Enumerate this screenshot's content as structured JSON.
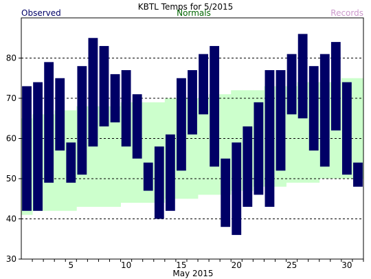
{
  "chart_data": {
    "type": "bar",
    "title": "KBTL Temps for  5/2015",
    "legend": {
      "observed": "Observed",
      "normals": "Normals",
      "records": "Records"
    },
    "xlabel": "May 2015",
    "ylabel": "",
    "xlim": [
      0.5,
      31.5
    ],
    "ylim": [
      30,
      90
    ],
    "x_tick_labels": [
      "5",
      "10",
      "15",
      "20",
      "25",
      "30"
    ],
    "x_tick_values": [
      5,
      10,
      15,
      20,
      25,
      30
    ],
    "y_tick_labels": [
      "30",
      "40",
      "50",
      "60",
      "70",
      "80"
    ],
    "y_tick_values": [
      30,
      40,
      50,
      60,
      70,
      80
    ],
    "grid_lines_y": [
      40,
      50,
      60,
      70,
      80
    ],
    "days": [
      1,
      2,
      3,
      4,
      5,
      6,
      7,
      8,
      9,
      10,
      11,
      12,
      13,
      14,
      15,
      16,
      17,
      18,
      19,
      20,
      21,
      22,
      23,
      24,
      25,
      26,
      27,
      28,
      29,
      30,
      31
    ],
    "series": [
      {
        "name": "Observed",
        "color": "#000066",
        "high": [
          73,
          74,
          79,
          75,
          59,
          78,
          85,
          83,
          76,
          77,
          71,
          54,
          58,
          61,
          75,
          77,
          81,
          83,
          55,
          59,
          63,
          69,
          77,
          77,
          81,
          86,
          78,
          81,
          84,
          74,
          54
        ],
        "low": [
          42,
          42,
          49,
          57,
          49,
          51,
          58,
          63,
          64,
          58,
          55,
          47,
          40,
          42,
          52,
          61,
          66,
          53,
          38,
          36,
          43,
          46,
          43,
          52,
          66,
          65,
          57,
          53,
          62,
          51,
          48
        ]
      },
      {
        "name": "Normals",
        "color": "#ccffcc",
        "high": [
          65,
          66,
          66,
          67,
          67,
          68,
          68,
          68,
          68,
          69,
          69,
          69,
          69,
          70,
          70,
          70,
          70,
          71,
          71,
          72,
          72,
          72,
          73,
          73,
          73,
          74,
          74,
          74,
          74,
          75,
          75
        ],
        "low": [
          41,
          42,
          42,
          42,
          42,
          43,
          43,
          43,
          43,
          44,
          44,
          44,
          44,
          45,
          45,
          45,
          46,
          46,
          46,
          47,
          47,
          48,
          48,
          48,
          49,
          49,
          49,
          50,
          50,
          50,
          50
        ]
      }
    ],
    "colors": {
      "observed_text": "#000066",
      "normals_text": "#006600",
      "records_text": "#cc99cc",
      "normals_fill": "#ccffcc",
      "bar_fill": "#000066",
      "grid": "#000000"
    }
  }
}
